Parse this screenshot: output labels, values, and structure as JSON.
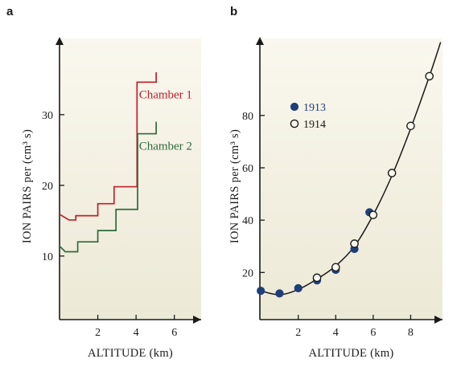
{
  "colors": {
    "panel_bg_top": "#faf7ee",
    "panel_bg_bottom": "#ece9d6",
    "axis": "#1a1a1a",
    "chamber1": "#c0202a",
    "chamber2": "#2f6a3a",
    "series_1913": "#1f3f7a",
    "series_1914": "#1a1a1a"
  },
  "chart_data": [
    {
      "panel": "a",
      "type": "line",
      "step": true,
      "xlabel": "ALTITUDE (km)",
      "ylabel": "ION PAIRS per (cm³ s)",
      "xlim": [
        0,
        7.4
      ],
      "ylim": [
        1,
        41
      ],
      "xticks": [
        2,
        4,
        6
      ],
      "yticks": [
        10,
        20,
        30
      ],
      "series": [
        {
          "name": "Chamber 1",
          "color": "#c0202a",
          "x": [
            0,
            0.5,
            0.85,
            2.0,
            2.85,
            4.0,
            4.05,
            5.05,
            5.05
          ],
          "y": [
            15.9,
            15.1,
            15.7,
            17.4,
            19.8,
            19.8,
            34.6,
            34.6,
            36.0
          ]
        },
        {
          "name": "Chamber 2",
          "color": "#2f6a3a",
          "x": [
            0,
            0.3,
            0.95,
            2.0,
            2.95,
            4.0,
            4.08,
            5.05,
            5.05
          ],
          "y": [
            11.4,
            10.6,
            12.0,
            13.6,
            16.6,
            16.6,
            27.3,
            27.3,
            29.0
          ]
        }
      ]
    },
    {
      "panel": "b",
      "type": "scatter",
      "fit_line": true,
      "xlabel": "ALTITUDE (km)",
      "ylabel": "ION PAIRS per (cm³ s)",
      "xlim": [
        -0.05,
        9.7
      ],
      "ylim": [
        2,
        110
      ],
      "xticks": [
        2,
        4,
        6,
        8
      ],
      "yticks": [
        20,
        40,
        60,
        80
      ],
      "legend_position": "upper-left",
      "series": [
        {
          "name": "1913",
          "marker": "filled",
          "color": "#1f3f7a",
          "x": [
            0,
            1,
            2,
            3,
            4,
            5,
            5.8
          ],
          "y": [
            13,
            12,
            14,
            17,
            21,
            29,
            43
          ]
        },
        {
          "name": "1914",
          "marker": "open",
          "color": "#1a1a1a",
          "x": [
            3,
            4,
            5,
            6,
            7,
            8,
            9
          ],
          "y": [
            18,
            22,
            31,
            42,
            58,
            76,
            95
          ]
        }
      ],
      "fit": {
        "x": [
          0,
          1,
          2,
          3,
          4,
          5,
          6,
          7,
          8,
          9,
          9.6
        ],
        "y": [
          13,
          11.5,
          13.5,
          17.5,
          22.5,
          30,
          42,
          57,
          75,
          95,
          108
        ]
      }
    }
  ]
}
